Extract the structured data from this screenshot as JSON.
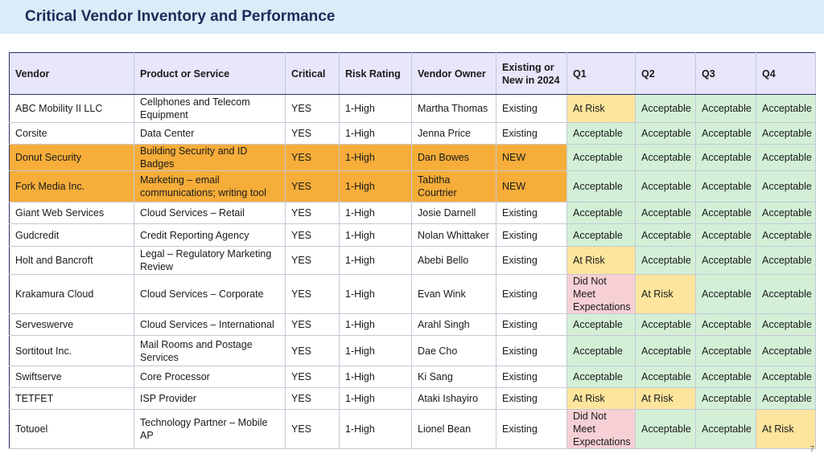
{
  "title": "Critical Vendor Inventory and Performance",
  "page_number": "7",
  "colors": {
    "header_bg": "#d9ecf7",
    "title_text": "#1f2a5a",
    "column_header_bg": "#e7e6fb",
    "new_vendor_highlight": "#f6ad3a",
    "acceptable": "#d3f0d7",
    "at_risk": "#fde59d",
    "did_not_meet": "#f6d0d5"
  },
  "columns": [
    "Vendor",
    "Product or Service",
    "Critical",
    "Risk Rating",
    "Vendor Owner",
    "Existing or New in 2024",
    "Q1",
    "Q2",
    "Q3",
    "Q4"
  ],
  "rows": [
    {
      "vendor": "ABC Mobility II LLC",
      "product": "Cellphones and Telecom Equipment",
      "critical": "YES",
      "risk": "1-High",
      "owner": "Martha Thomas",
      "status": "Existing",
      "q1": "At Risk",
      "q2": "Acceptable",
      "q3": "Acceptable",
      "q4": "Acceptable",
      "highlight": false,
      "height": 35
    },
    {
      "vendor": "Corsite",
      "product": "Data Center",
      "critical": "YES",
      "risk": "1-High",
      "owner": "Jenna Price",
      "status": "Existing",
      "q1": "Acceptable",
      "q2": "Acceptable",
      "q3": "Acceptable",
      "q4": "Acceptable",
      "highlight": false,
      "height": 27
    },
    {
      "vendor": "Donut Security",
      "product": "Building Security and ID Badges",
      "critical": "YES",
      "risk": "1-High",
      "owner": "Dan Bowes",
      "status": "NEW",
      "q1": "Acceptable",
      "q2": "Acceptable",
      "q3": "Acceptable",
      "q4": "Acceptable",
      "highlight": true,
      "height": 29
    },
    {
      "vendor": "Fork Media Inc.",
      "product": "Marketing – email communications; writing tool",
      "critical": "YES",
      "risk": "1-High",
      "owner": "Tabitha Courtrier",
      "status": "NEW",
      "q1": "Acceptable",
      "q2": "Acceptable",
      "q3": "Acceptable",
      "q4": "Acceptable",
      "highlight": true,
      "height": 39
    },
    {
      "vendor": "Giant Web Services",
      "product": "Cloud Services – Retail",
      "critical": "YES",
      "risk": "1-High",
      "owner": "Josie Darnell",
      "status": "Existing",
      "q1": "Acceptable",
      "q2": "Acceptable",
      "q3": "Acceptable",
      "q4": "Acceptable",
      "highlight": false,
      "height": 27
    },
    {
      "vendor": "Gudcredit",
      "product": "Credit Reporting Agency",
      "critical": "YES",
      "risk": "1-High",
      "owner": "Nolan Whittaker",
      "status": "Existing",
      "q1": "Acceptable",
      "q2": "Acceptable",
      "q3": "Acceptable",
      "q4": "Acceptable",
      "highlight": false,
      "height": 28
    },
    {
      "vendor": "Holt and Bancroft",
      "product": "Legal – Regulatory Marketing Review",
      "critical": "YES",
      "risk": "1-High",
      "owner": "Abebi Bello",
      "status": "Existing",
      "q1": "At Risk",
      "q2": "Acceptable",
      "q3": "Acceptable",
      "q4": "Acceptable",
      "highlight": false,
      "height": 35
    },
    {
      "vendor": "Krakamura Cloud",
      "product": "Cloud Services – Corporate",
      "critical": "YES",
      "risk": "1-High",
      "owner": "Evan Wink",
      "status": "Existing",
      "q1": "Did Not Meet Expectations",
      "q2": "At Risk",
      "q3": "Acceptable",
      "q4": "Acceptable",
      "highlight": false,
      "height": 48
    },
    {
      "vendor": "Serveswerve",
      "product": "Cloud Services – International",
      "critical": "YES",
      "risk": "1-High",
      "owner": "Arahl Singh",
      "status": "Existing",
      "q1": "Acceptable",
      "q2": "Acceptable",
      "q3": "Acceptable",
      "q4": "Acceptable",
      "highlight": false,
      "height": 27
    },
    {
      "vendor": "Sortitout Inc.",
      "product": "Mail Rooms and Postage Services",
      "critical": "YES",
      "risk": "1-High",
      "owner": "Dae Cho",
      "status": "Existing",
      "q1": "Acceptable",
      "q2": "Acceptable",
      "q3": "Acceptable",
      "q4": "Acceptable",
      "highlight": false,
      "height": 38
    },
    {
      "vendor": "Swiftserve",
      "product": "Core Processor",
      "critical": "YES",
      "risk": "1-High",
      "owner": "Ki Sang",
      "status": "Existing",
      "q1": "Acceptable",
      "q2": "Acceptable",
      "q3": "Acceptable",
      "q4": "Acceptable",
      "highlight": false,
      "height": 27
    },
    {
      "vendor": "TETFET",
      "product": "ISP Provider",
      "critical": "YES",
      "risk": "1-High",
      "owner": "Ataki Ishayiro",
      "status": "Existing",
      "q1": "At Risk",
      "q2": "At Risk",
      "q3": "Acceptable",
      "q4": "Acceptable",
      "highlight": false,
      "height": 27
    },
    {
      "vendor": "Totuoel",
      "product": "Technology Partner – Mobile AP",
      "critical": "YES",
      "risk": "1-High",
      "owner": "Lionel Bean",
      "status": "Existing",
      "q1": "Did Not Meet Expectations",
      "q2": "Acceptable",
      "q3": "Acceptable",
      "q4": "At Risk",
      "highlight": false,
      "height": 35
    }
  ]
}
